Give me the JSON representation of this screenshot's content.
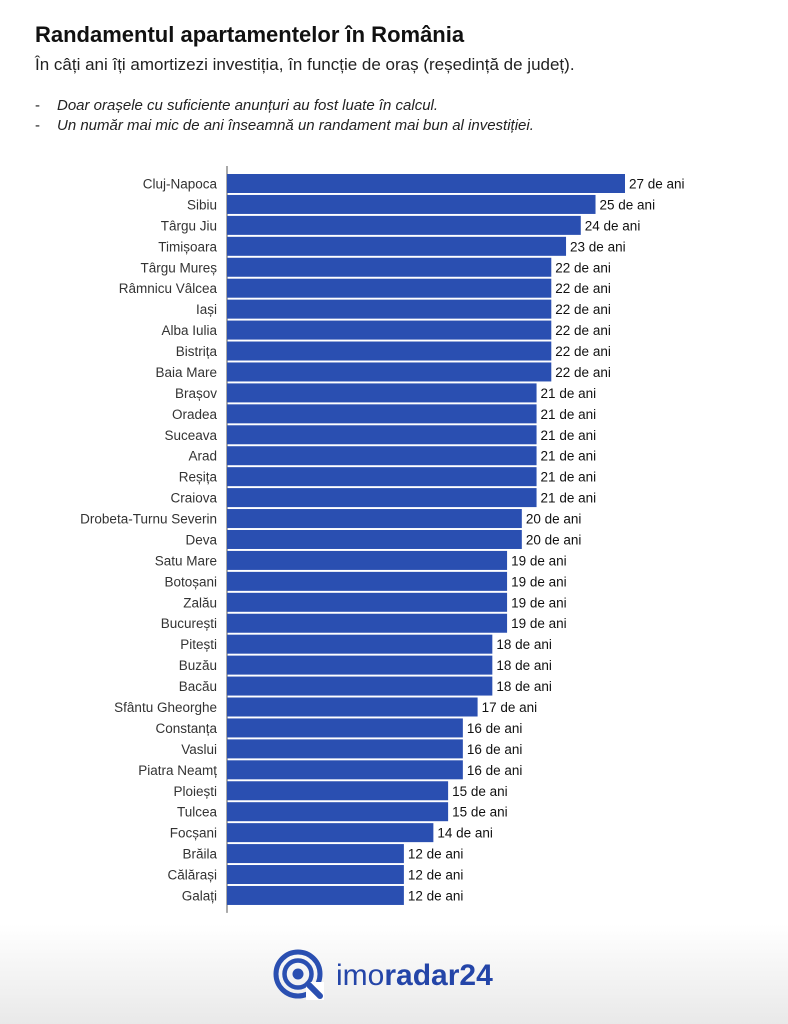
{
  "header": {
    "title": "Randamentul apartamentelor în România",
    "subtitle": "În câți ani îți amortizezi investiția, în funcție de oraș (reședință de județ).",
    "notes": [
      {
        "dash": "-",
        "text": "Doar orașele cu suficiente anunțuri au fost luate în calcul."
      },
      {
        "dash": "-",
        "text": "Un număr mai mic de ani înseamnă un randament mai bun al investiției."
      }
    ]
  },
  "brand": {
    "light": "imo",
    "bold": "radar24",
    "icon": "radar-logo-icon"
  },
  "colors": {
    "bar": "#2a4fb1",
    "axis": "#555555",
    "footer_bg": "#ececec"
  },
  "chart_data": {
    "type": "bar",
    "orientation": "horizontal",
    "title": "Randamentul apartamentelor în România",
    "value_unit": "de ani",
    "xlim": [
      0,
      27
    ],
    "grid": false,
    "legend": "none",
    "categories": [
      "Cluj-Napoca",
      "Sibiu",
      "Târgu Jiu",
      "Timișoara",
      "Târgu Mureș",
      "Râmnicu Vâlcea",
      "Iași",
      "Alba Iulia",
      "Bistrița",
      "Baia Mare",
      "Brașov",
      "Oradea",
      "Suceava",
      "Arad",
      "Reșița",
      "Craiova",
      "Drobeta-Turnu Severin",
      "Deva",
      "Satu Mare",
      "Botoșani",
      "Zalău",
      "București",
      "Pitești",
      "Buzău",
      "Bacău",
      "Sfântu Gheorghe",
      "Constanța",
      "Vaslui",
      "Piatra Neamț",
      "Ploiești",
      "Tulcea",
      "Focșani",
      "Brăila",
      "Călărași",
      "Galați"
    ],
    "values": [
      27,
      25,
      24,
      23,
      22,
      22,
      22,
      22,
      22,
      22,
      21,
      21,
      21,
      21,
      21,
      21,
      20,
      20,
      19,
      19,
      19,
      19,
      18,
      18,
      18,
      17,
      16,
      16,
      16,
      15,
      15,
      14,
      12,
      12,
      12
    ],
    "labels": [
      "27 de ani",
      "25 de ani",
      "24 de ani",
      "23 de ani",
      "22 de ani",
      "22 de ani",
      "22 de ani",
      "22 de ani",
      "22 de ani",
      "22 de ani",
      "21 de ani",
      "21 de ani",
      "21 de ani",
      "21 de ani",
      "21 de ani",
      "21 de ani",
      "20 de ani",
      "20 de ani",
      "19 de ani",
      "19 de ani",
      "19 de ani",
      "19 de ani",
      "18 de ani",
      "18 de ani",
      "18 de ani",
      "17 de ani",
      "16 de ani",
      "16 de ani",
      "16 de ani",
      "15 de ani",
      "15 de ani",
      "14 de ani",
      "12 de ani",
      "12 de ani",
      "12 de ani"
    ]
  }
}
